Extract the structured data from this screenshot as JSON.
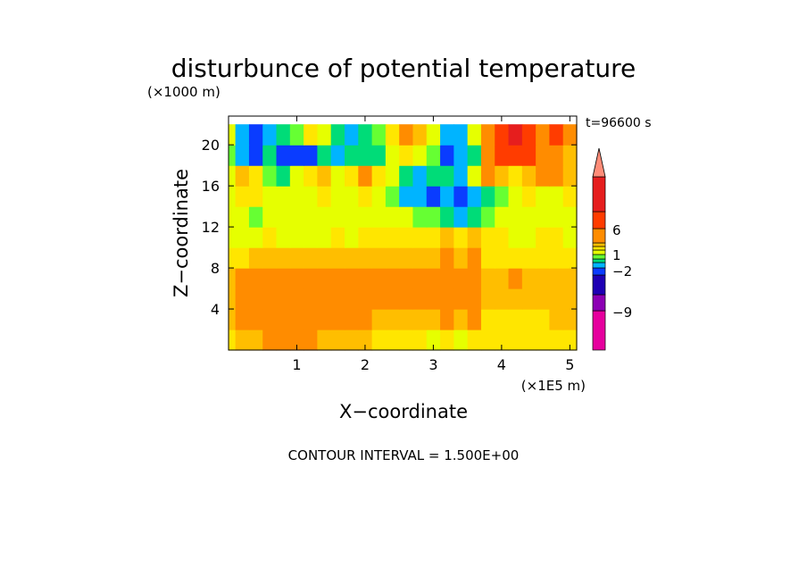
{
  "chart_data": {
    "type": "heatmap",
    "title": "disturbunce of potential temperature",
    "subtitle": "t=96600 s",
    "xlabel": "X−coordinate",
    "ylabel": "Z−coordinate",
    "x_unit": "(×1E5 m)",
    "y_unit": "(×1000 m)",
    "xlim": [
      0.0,
      5.1
    ],
    "ylim": [
      0.0,
      22.8
    ],
    "x_ticks": [
      1,
      2,
      3,
      4,
      5
    ],
    "y_ticks": [
      4,
      8,
      12,
      16,
      20
    ],
    "footer": "CONTOUR INTERVAL = 1.500E+00",
    "contour_interval": 1.5,
    "colorbar": {
      "labels": [
        "6",
        "1",
        "−2",
        "−9"
      ],
      "label_values": [
        6,
        1,
        -2,
        -9
      ],
      "extend": "max",
      "colors": [
        "#e6009e",
        "#8c00b4",
        "#1e00b4",
        "#0a3cff",
        "#00b4ff",
        "#00dc78",
        "#66ff33",
        "#e6ff00",
        "#ffe600",
        "#ffbe00",
        "#ff8c00",
        "#ff3c00",
        "#e61e1e",
        "#ff8c78"
      ],
      "levels": [
        -9,
        -6,
        -3,
        -2,
        -1,
        0,
        0.5,
        1,
        1.5,
        2,
        3,
        6,
        7.5
      ]
    },
    "x": [
      0.0,
      0.2,
      0.4,
      0.6,
      0.8,
      1.0,
      1.2,
      1.4,
      1.6,
      1.8,
      2.0,
      2.2,
      2.4,
      2.6,
      2.8,
      3.0,
      3.2,
      3.4,
      3.6,
      3.8,
      4.0,
      4.2,
      4.4,
      4.6,
      4.8,
      5.0
    ],
    "y": [
      1,
      3,
      5,
      7,
      9,
      11,
      13,
      15,
      17,
      19,
      21
    ],
    "z": [
      [
        1.0,
        1.5,
        1.5,
        2.0,
        2.0,
        2.0,
        2.0,
        1.5,
        1.5,
        1.5,
        1.5,
        1.0,
        1.0,
        1.0,
        1.0,
        0.5,
        1.0,
        0.5,
        1.0,
        1.0,
        1.0,
        1.0,
        1.0,
        1.0,
        1.0,
        1.0
      ],
      [
        1.5,
        2.5,
        2.5,
        2.5,
        2.5,
        2.0,
        2.0,
        2.0,
        2.0,
        2.0,
        2.0,
        1.5,
        1.5,
        1.5,
        1.5,
        1.5,
        2.0,
        1.5,
        2.0,
        1.0,
        1.0,
        1.0,
        1.0,
        1.0,
        1.5,
        1.5
      ],
      [
        1.5,
        2.5,
        2.5,
        2.5,
        2.5,
        2.5,
        2.5,
        2.5,
        2.5,
        2.5,
        2.5,
        2.0,
        2.0,
        2.0,
        2.0,
        2.0,
        2.5,
        2.0,
        2.5,
        1.5,
        1.5,
        1.5,
        1.5,
        1.5,
        1.5,
        1.5
      ],
      [
        1.5,
        2.0,
        2.0,
        2.5,
        2.5,
        2.5,
        2.5,
        2.5,
        2.5,
        2.5,
        2.5,
        2.5,
        2.0,
        2.0,
        2.0,
        2.5,
        2.5,
        2.0,
        2.5,
        1.5,
        1.5,
        2.0,
        1.5,
        1.5,
        1.5,
        1.5
      ],
      [
        1.0,
        1.0,
        1.5,
        1.5,
        1.5,
        1.5,
        1.5,
        1.5,
        1.5,
        1.5,
        1.5,
        1.5,
        1.5,
        1.5,
        1.5,
        1.5,
        2.0,
        1.5,
        2.0,
        1.0,
        1.0,
        1.0,
        1.0,
        1.0,
        1.0,
        1.0
      ],
      [
        0.5,
        0.5,
        0.5,
        1.0,
        0.5,
        0.5,
        0.5,
        0.5,
        1.0,
        0.5,
        1.0,
        1.0,
        1.0,
        1.0,
        1.0,
        1.0,
        1.5,
        1.0,
        1.5,
        1.0,
        1.0,
        0.5,
        0.5,
        1.0,
        1.0,
        0.5
      ],
      [
        0.5,
        0.5,
        0.0,
        0.5,
        0.5,
        0.5,
        0.5,
        0.5,
        0.5,
        0.5,
        0.5,
        0.5,
        0.5,
        0.5,
        0.0,
        0.0,
        -0.5,
        -1.5,
        -0.5,
        0.0,
        0.5,
        0.5,
        0.5,
        0.5,
        0.5,
        0.5
      ],
      [
        0.5,
        1.0,
        1.0,
        0.5,
        0.5,
        0.5,
        0.5,
        1.0,
        0.5,
        0.5,
        1.0,
        0.5,
        0.0,
        -1.5,
        -1.5,
        -2.5,
        -1.5,
        -2.5,
        -1.5,
        -1.0,
        0.0,
        0.5,
        1.0,
        0.5,
        0.5,
        1.0
      ],
      [
        0.5,
        1.5,
        1.0,
        0.0,
        -1.0,
        0.5,
        1.0,
        1.5,
        0.5,
        1.0,
        2.0,
        1.0,
        0.5,
        -1.0,
        -1.5,
        -1.0,
        -0.5,
        -1.5,
        0.5,
        2.0,
        1.5,
        1.0,
        1.5,
        2.0,
        2.0,
        1.5
      ],
      [
        0.0,
        -1.5,
        -2.5,
        -1.0,
        -2.5,
        -3.0,
        -2.5,
        -1.0,
        -1.5,
        -0.5,
        -0.5,
        -1.0,
        0.5,
        1.0,
        0.5,
        0.0,
        -2.5,
        -1.5,
        -1.0,
        2.0,
        3.0,
        4.5,
        3.0,
        2.0,
        2.5,
        1.5
      ],
      [
        0.5,
        -1.5,
        -2.5,
        -1.5,
        -0.5,
        0.0,
        1.0,
        0.5,
        -1.0,
        -1.5,
        -0.5,
        0.0,
        1.0,
        2.0,
        1.5,
        0.5,
        -1.5,
        -2.0,
        0.5,
        2.5,
        3.0,
        6.5,
        3.0,
        2.0,
        3.0,
        2.0
      ]
    ]
  }
}
